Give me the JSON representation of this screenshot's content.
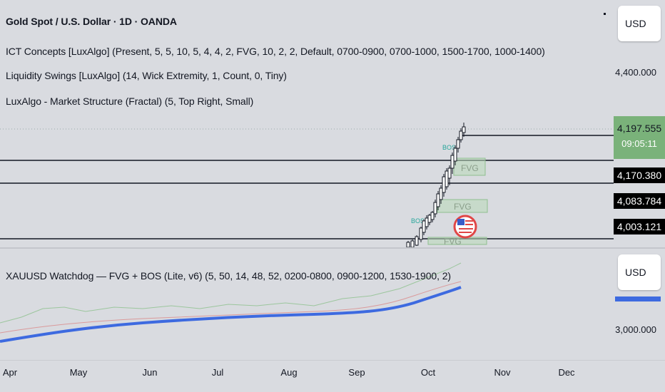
{
  "header": {
    "symbol_title": "Gold Spot / U.S. Dollar · 1D · OANDA",
    "indicators": [
      "ICT Concepts [LuxAlgo] (Present, 5, 5, 10, 5, 4, 4, 2, FVG, 10, 2, 2, Default, 0700-0900, 0700-1000, 1500-1700, 1000-1400)",
      "Liquidity Swings [LuxAlgo] (14, Wick Extremity, 1, Count, 0, Tiny)",
      "LuxAlgo - Market Structure (Fractal) (5, Top Right, Small)"
    ]
  },
  "lower_pane": {
    "indicator": "XAUUSD Watchdog — FVG + BOS (Lite, v6) (5, 50, 14, 48, 52, 0200-0800, 0900-1200, 1530-1900, 2)",
    "currency_button": "USD",
    "price_labels": [
      "3,000.000"
    ],
    "line_color": "#3d6ae0"
  },
  "price_axis": {
    "currency_button": "USD",
    "labels": [
      "4,400.000"
    ],
    "tags": {
      "last_price": "4,197.555",
      "countdown": "09:05:11",
      "level_1": "4,170.380",
      "level_2": "4,083.784",
      "level_3": "4,003.121"
    },
    "last_price_color": "#7ab27a"
  },
  "chart_labels": {
    "fvg_1": "FVG",
    "fvg_2": "FVG",
    "fvg_3": "FVG",
    "bos_1": "BOS",
    "bos_2": "BOS"
  },
  "time_axis": [
    "Apr",
    "May",
    "Jun",
    "Jul",
    "Aug",
    "Sep",
    "Oct",
    "Nov",
    "Dec"
  ],
  "colors": {
    "background": "#d9dbe0",
    "bullish": "#26a69a",
    "candle": "#131722"
  }
}
